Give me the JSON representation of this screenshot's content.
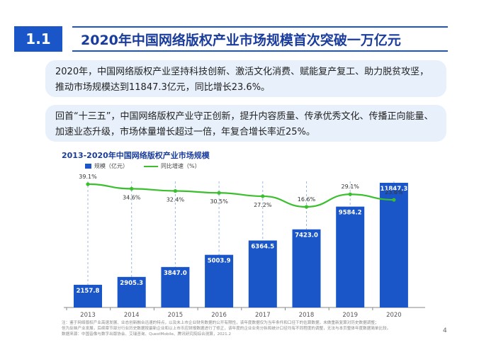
{
  "header": {
    "section_number": "1.1",
    "title": "2020年中国网络版权产业市场规模首次突破一万亿元"
  },
  "bullets": [
    "2020年，中国网络版权产业坚持科技创新、激活文化消费、赋能复产复工、助力脱贫攻坚，推动市场规模达到11847.3亿元，同比增长23.6%。",
    "回首“十三五”，中国网络版权产业守正创新，提升内容质量、传承优秀文化、传播正向能量、加速业态升级，市场体量增长超过一倍，年复合增长率近25%。"
  ],
  "colors": {
    "accent": "#1a56c8",
    "line": "#3bbf2e",
    "box_bg": "#e8f1fb"
  },
  "chart_data": {
    "type": "bar",
    "title": "2013-2020年中国网络版权产业市场规模",
    "categories": [
      "2013",
      "2014",
      "2015",
      "2016",
      "2017",
      "2018",
      "2019",
      "2020"
    ],
    "series": [
      {
        "name": "规模（亿元）",
        "type": "bar",
        "values": [
          2157.8,
          2905.3,
          3847.0,
          5003.9,
          6364.5,
          7423.0,
          9584.2,
          11847.3
        ],
        "labels": [
          "2157.8",
          "2905.3",
          "3847.0",
          "5003.9",
          "6364.5",
          "7423.0",
          "9584.2",
          "11847.3"
        ]
      },
      {
        "name": "同比增速（%）",
        "type": "line",
        "values": [
          39.1,
          34.6,
          32.4,
          30.5,
          27.2,
          16.6,
          29.1,
          23.6
        ],
        "labels": [
          "39.1%",
          "34.6%",
          "32.4%",
          "30.5%",
          "27.2%",
          "16.6%",
          "29.1%",
          "23.6%"
        ]
      }
    ],
    "grid": false,
    "legend": "top-left"
  },
  "footnote": [
    "注：鉴于网络版权产业高速发展、业态创新融合迅速的特点，以及未上市企业财务数据的公开有限性，该年度数据仅为当年条件和口径下的估算数据，未做重新复算对历史数据调整；",
    "但为反映产业发展，后续章节部分行业历史数据按最新企业和以上市币应财报数据进行了修正，该年度的企业业务分拆和统计口径均有不同程度的调整，无法与本页整体年度数据简单比较。",
    "数据来源：中国音像与数字出版协会、艾瑞咨询、QuestMobile、腾讯研究院综合测算，2021.2"
  ],
  "page_number": "4"
}
